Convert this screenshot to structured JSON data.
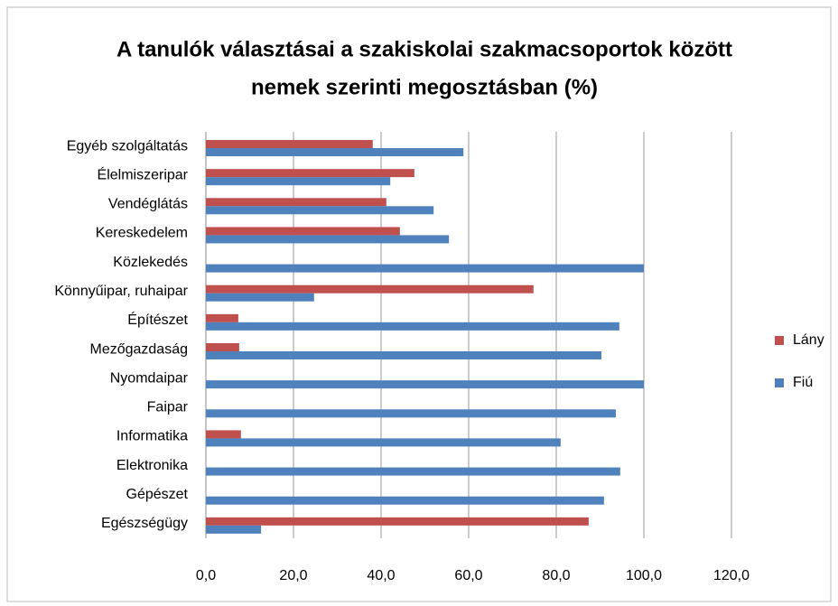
{
  "chart_data": {
    "type": "bar",
    "orientation": "horizontal",
    "title": [
      "A tanulók választásai a szakiskolai szakmacsoportok között",
      "nemek szerinti megosztásban (%)"
    ],
    "categories": [
      "Egyéb szolgáltatás",
      "Élelmiszeripar",
      "Vendéglátás",
      "Kereskedelem",
      "Közlekedés",
      "Könnyűipar, ruhaipar",
      "Építészet",
      "Mezőgazdaság",
      "Nyomdaipar",
      "Faipar",
      "Informatika",
      "Elektronika",
      "Gépészet",
      "Egészségügy"
    ],
    "series": [
      {
        "name": "Lány",
        "color": "#c0504d",
        "values": [
          38.1,
          47.6,
          41.2,
          44.3,
          0,
          74.8,
          7.4,
          7.6,
          0,
          0,
          8,
          0,
          0,
          87.4
        ]
      },
      {
        "name": "Fiú",
        "color": "#4f81bd",
        "values": [
          58.8,
          42.1,
          52,
          55.5,
          100,
          24.7,
          94.4,
          90.3,
          100,
          93.6,
          81,
          94.6,
          90.9,
          12.6
        ]
      }
    ],
    "xlim": [
      0,
      120
    ],
    "xticks": [
      {
        "value": 0,
        "label": "0,0"
      },
      {
        "value": 20,
        "label": "20,0"
      },
      {
        "value": 40,
        "label": "40,0"
      },
      {
        "value": 60,
        "label": "60,0"
      },
      {
        "value": 80,
        "label": "80,0"
      },
      {
        "value": 100,
        "label": "100,0"
      },
      {
        "value": 120,
        "label": "120,0"
      }
    ],
    "grid": true,
    "legend": "right"
  }
}
